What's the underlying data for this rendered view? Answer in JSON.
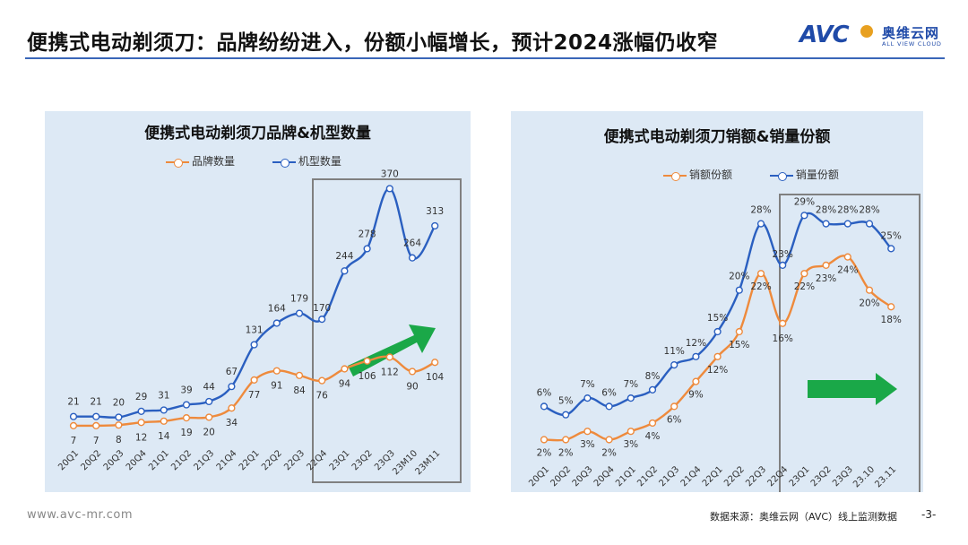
{
  "header": {
    "title": "便携式电动剃须刀：品牌纷纷进入，份额小幅增长，预计2024涨幅仍收窄",
    "logo_text": "AVC",
    "logo_cn": "奥维云网",
    "logo_en": "ALL VIEW CLOUD"
  },
  "footer": {
    "url": "www.avc-mr.com",
    "source": "数据来源：奥维云网（AVC）线上监测数据",
    "page": "-3-"
  },
  "colors": {
    "orange": "#ee8a3c",
    "blue": "#2a5fc0",
    "arrow": "#1aa848",
    "panel_bg": "#dde9f5"
  },
  "chart_data": [
    {
      "type": "line",
      "title": "便携式电动剃须刀品牌&机型数量",
      "categories": [
        "20Q1",
        "20Q2",
        "20Q3",
        "20Q4",
        "21Q1",
        "21Q2",
        "21Q3",
        "21Q4",
        "22Q1",
        "22Q2",
        "22Q3",
        "22Q4",
        "23Q1",
        "23Q2",
        "23Q3",
        "23M10",
        "23M11"
      ],
      "category_labels_shown": [
        "20Q1",
        "20Q2",
        "20Q3",
        "20Q4",
        "21Q1",
        "21Q2",
        "21Q3",
        "21Q4",
        "22Q1",
        "22Q2",
        "22Q3",
        "22Q4",
        "23Q1",
        "23Q2",
        "23Q3",
        "23M10",
        "23M11"
      ],
      "series": [
        {
          "name": "品牌数量",
          "color": "#ee8a3c",
          "values": [
            7,
            7,
            8,
            12,
            14,
            19,
            20,
            34,
            77,
            91,
            84,
            76,
            94,
            106,
            112,
            90,
            104
          ]
        },
        {
          "name": "机型数量",
          "color": "#2a5fc0",
          "values": [
            21,
            21,
            20,
            29,
            31,
            39,
            44,
            67,
            131,
            164,
            179,
            170,
            244,
            278,
            370,
            264,
            313
          ]
        }
      ],
      "ylim": [
        0,
        420
      ],
      "legend": "top",
      "grid": false
    },
    {
      "type": "line",
      "title": "便携式电动剃须刀销额&销量份额",
      "categories": [
        "20Q1",
        "20Q2",
        "20Q3",
        "20Q4",
        "21Q1",
        "21Q2",
        "21Q3",
        "21Q4",
        "22Q1",
        "22Q2",
        "22Q3",
        "22Q4",
        "23Q1",
        "23Q2",
        "23Q3",
        "23.10",
        "23.11"
      ],
      "series": [
        {
          "name": "销额份额",
          "color": "#ee8a3c",
          "values": [
            2,
            2,
            3,
            2,
            3,
            4,
            6,
            9,
            12,
            15,
            22,
            16,
            22,
            23,
            24,
            20,
            18
          ],
          "labels": [
            "2%",
            "2%",
            "3%",
            "2%",
            "3%",
            "4%",
            "6%",
            "9%",
            "12%",
            "15%",
            "22%",
            "16%",
            "22%",
            "23%",
            "24%",
            "20%",
            "18%"
          ]
        },
        {
          "name": "销量份额",
          "color": "#2a5fc0",
          "values": [
            6,
            5,
            7,
            6,
            7,
            8,
            11,
            12,
            15,
            20,
            28,
            23,
            29,
            28,
            28,
            28,
            25
          ],
          "labels": [
            "6%",
            "5%",
            "7%",
            "6%",
            "7%",
            "8%",
            "11%",
            "12%",
            "15%",
            "20%",
            "28%",
            "23%",
            "29%",
            "28%",
            "28%",
            "28%",
            "25%"
          ]
        }
      ],
      "ylim": [
        0,
        34
      ],
      "legend": "top",
      "grid": false
    }
  ]
}
